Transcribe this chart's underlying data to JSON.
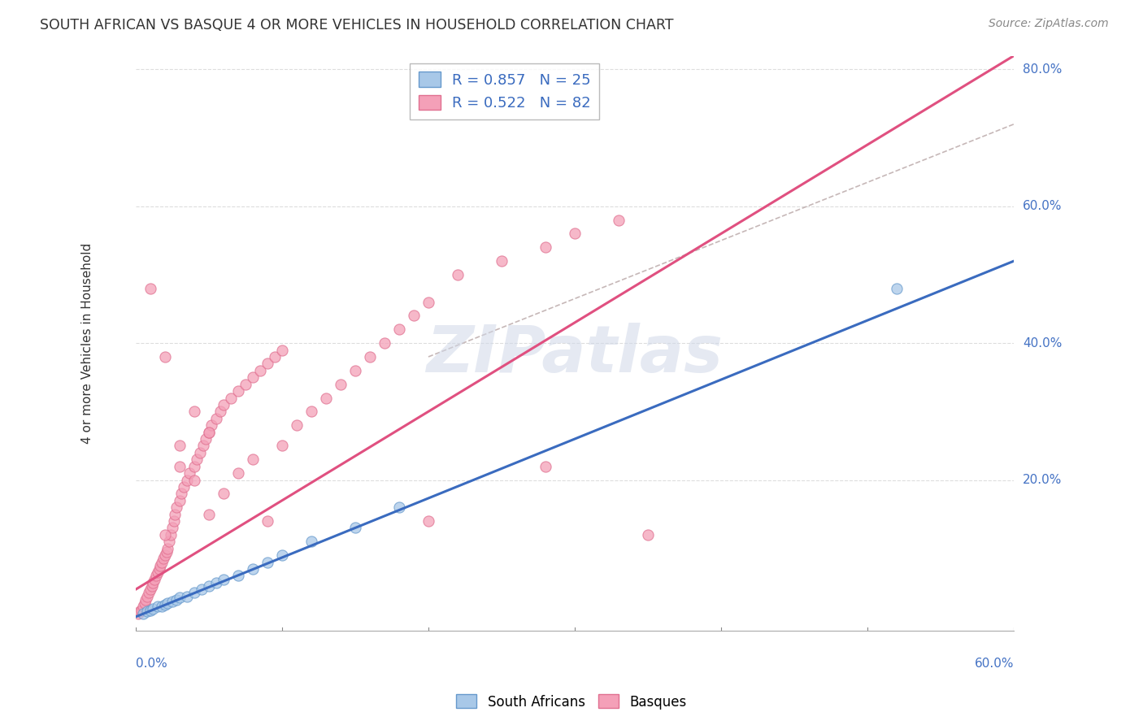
{
  "title": "SOUTH AFRICAN VS BASQUE 4 OR MORE VEHICLES IN HOUSEHOLD CORRELATION CHART",
  "source": "Source: ZipAtlas.com",
  "ylabel": "4 or more Vehicles in Household",
  "xlim": [
    0.0,
    0.6
  ],
  "ylim": [
    -0.02,
    0.82
  ],
  "legend_r1": "R = 0.857",
  "legend_n1": "N = 25",
  "legend_r2": "R = 0.522",
  "legend_n2": "N = 82",
  "color_blue_fill": "#a8c8e8",
  "color_blue_edge": "#6699cc",
  "color_pink_fill": "#f4a0b8",
  "color_pink_edge": "#e07090",
  "color_line_blue": "#3a6bbf",
  "color_line_pink": "#e05080",
  "color_ref_line": "#c0b0b0",
  "watermark": "ZIPatlas",
  "ytick_vals": [
    0.0,
    0.2,
    0.4,
    0.6,
    0.8
  ],
  "ytick_labels": [
    "",
    "20.0%",
    "40.0%",
    "60.0%",
    "80.0%"
  ],
  "grid_color": "#dddddd",
  "sa_x": [
    0.005,
    0.008,
    0.01,
    0.012,
    0.015,
    0.018,
    0.02,
    0.022,
    0.025,
    0.028,
    0.03,
    0.035,
    0.04,
    0.045,
    0.05,
    0.055,
    0.06,
    0.07,
    0.08,
    0.09,
    0.1,
    0.12,
    0.15,
    0.18,
    0.52
  ],
  "sa_y": [
    0.005,
    0.008,
    0.01,
    0.012,
    0.015,
    0.015,
    0.018,
    0.02,
    0.022,
    0.025,
    0.028,
    0.03,
    0.035,
    0.04,
    0.045,
    0.05,
    0.055,
    0.06,
    0.07,
    0.08,
    0.09,
    0.11,
    0.13,
    0.16,
    0.48
  ],
  "b_x": [
    0.002,
    0.003,
    0.004,
    0.005,
    0.006,
    0.007,
    0.008,
    0.009,
    0.01,
    0.011,
    0.012,
    0.013,
    0.014,
    0.015,
    0.016,
    0.017,
    0.018,
    0.019,
    0.02,
    0.021,
    0.022,
    0.023,
    0.024,
    0.025,
    0.026,
    0.027,
    0.028,
    0.03,
    0.031,
    0.033,
    0.035,
    0.037,
    0.04,
    0.042,
    0.044,
    0.046,
    0.048,
    0.05,
    0.052,
    0.055,
    0.058,
    0.06,
    0.065,
    0.07,
    0.075,
    0.08,
    0.085,
    0.09,
    0.095,
    0.1,
    0.11,
    0.12,
    0.13,
    0.14,
    0.15,
    0.16,
    0.17,
    0.18,
    0.19,
    0.2,
    0.22,
    0.25,
    0.28,
    0.3,
    0.33,
    0.01,
    0.02,
    0.03,
    0.04,
    0.05,
    0.02,
    0.03,
    0.04,
    0.05,
    0.06,
    0.07,
    0.08,
    0.09,
    0.1,
    0.2,
    0.35,
    0.28
  ],
  "b_y": [
    0.005,
    0.008,
    0.01,
    0.015,
    0.02,
    0.025,
    0.03,
    0.035,
    0.04,
    0.045,
    0.05,
    0.055,
    0.06,
    0.065,
    0.07,
    0.075,
    0.08,
    0.085,
    0.09,
    0.095,
    0.1,
    0.11,
    0.12,
    0.13,
    0.14,
    0.15,
    0.16,
    0.17,
    0.18,
    0.19,
    0.2,
    0.21,
    0.22,
    0.23,
    0.24,
    0.25,
    0.26,
    0.27,
    0.28,
    0.29,
    0.3,
    0.31,
    0.32,
    0.33,
    0.34,
    0.35,
    0.36,
    0.37,
    0.38,
    0.39,
    0.28,
    0.3,
    0.32,
    0.34,
    0.36,
    0.38,
    0.4,
    0.42,
    0.44,
    0.46,
    0.5,
    0.52,
    0.54,
    0.56,
    0.58,
    0.48,
    0.38,
    0.25,
    0.2,
    0.15,
    0.12,
    0.22,
    0.3,
    0.27,
    0.18,
    0.21,
    0.23,
    0.14,
    0.25,
    0.14,
    0.12,
    0.22
  ],
  "sa_line_x0": 0.0,
  "sa_line_x1": 0.6,
  "sa_line_y0": 0.0,
  "sa_line_y1": 0.52,
  "b_line_x0": 0.0,
  "b_line_x1": 0.6,
  "b_line_y0": 0.04,
  "b_line_y1": 0.82,
  "ref_line_x0": 0.2,
  "ref_line_x1": 0.6,
  "ref_line_y0": 0.38,
  "ref_line_y1": 0.72
}
